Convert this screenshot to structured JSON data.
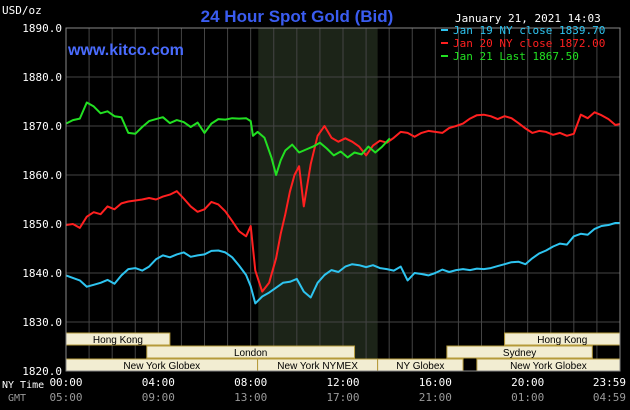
{
  "header": {
    "title": "24 Hour Spot Gold (Bid)",
    "unit": "USD/oz",
    "datetime": "January 21, 2021 14:03",
    "watermark": "www.kitco.com"
  },
  "colors": {
    "background": "#000000",
    "grid": "#444444",
    "axis_text": "#ffffff",
    "title": "#3a5cf0",
    "watermark": "#4a6cff",
    "band_fill": "#f2edd2",
    "band_text": "#000000",
    "band_border": "#b59a3a",
    "highlight": "#1c2418"
  },
  "chart_data": {
    "type": "line",
    "ylim": [
      1820,
      1890
    ],
    "yticks": [
      "1820.0",
      "1830.0",
      "1840.0",
      "1850.0",
      "1860.0",
      "1870.0",
      "1880.0",
      "1890.0"
    ],
    "ytick_values": [
      1820,
      1830,
      1840,
      1850,
      1860,
      1870,
      1880,
      1890
    ],
    "xlim": [
      0,
      24
    ],
    "xticks_ny": [
      "00:00",
      "04:00",
      "08:00",
      "12:00",
      "16:00",
      "20:00",
      "23:59"
    ],
    "xticks_gmt": [
      "05:00",
      "09:00",
      "13:00",
      "17:00",
      "21:00",
      "01:00",
      "04:59"
    ],
    "xtick_hours": [
      0,
      4,
      8,
      12,
      16,
      20,
      24
    ],
    "row_labels": [
      "NY Time",
      "GMT"
    ],
    "highlight_hours": [
      8.33,
      13.5
    ],
    "series": [
      {
        "name": "Jan 19 NY close 1839.70",
        "color": "#2ec4f0",
        "x": [
          0,
          0.3,
          0.6,
          0.9,
          1.2,
          1.5,
          1.8,
          2.1,
          2.4,
          2.7,
          3.0,
          3.3,
          3.6,
          3.9,
          4.2,
          4.5,
          4.8,
          5.1,
          5.4,
          5.7,
          6.0,
          6.3,
          6.6,
          6.9,
          7.2,
          7.5,
          7.8,
          8.0,
          8.2,
          8.5,
          8.8,
          9.1,
          9.4,
          9.7,
          10.0,
          10.3,
          10.6,
          10.9,
          11.2,
          11.5,
          11.8,
          12.1,
          12.4,
          12.7,
          13.0,
          13.3,
          13.6,
          13.9,
          14.2,
          14.5,
          14.8,
          15.1,
          15.4,
          15.7,
          16.0,
          16.3,
          16.6,
          16.9,
          17.2,
          17.5,
          17.8,
          18.1,
          18.4,
          18.7,
          19.0,
          19.3,
          19.6,
          19.9,
          20.2,
          20.5,
          20.8,
          21.1,
          21.4,
          21.7,
          22.0,
          22.3,
          22.6,
          22.9,
          23.2,
          23.5,
          23.8,
          24.0
        ],
        "values": [
          1839.5,
          1839.0,
          1838.5,
          1837.2,
          1837.6,
          1838.0,
          1838.6,
          1837.8,
          1839.5,
          1840.8,
          1841.0,
          1840.5,
          1841.3,
          1842.8,
          1843.6,
          1843.2,
          1843.8,
          1844.2,
          1843.3,
          1843.6,
          1843.8,
          1844.5,
          1844.6,
          1844.2,
          1843.2,
          1841.5,
          1839.6,
          1837.3,
          1833.8,
          1835.2,
          1836.0,
          1837.0,
          1838.0,
          1838.2,
          1838.8,
          1836.2,
          1835.0,
          1838.0,
          1839.6,
          1840.6,
          1840.2,
          1841.3,
          1841.8,
          1841.6,
          1841.2,
          1841.6,
          1841.0,
          1840.8,
          1840.5,
          1841.3,
          1838.5,
          1840.0,
          1839.8,
          1839.5,
          1840.0,
          1840.7,
          1840.2,
          1840.6,
          1840.8,
          1840.6,
          1840.9,
          1840.8,
          1841.0,
          1841.4,
          1841.8,
          1842.2,
          1842.3,
          1841.8,
          1843.0,
          1844.0,
          1844.6,
          1845.4,
          1846.0,
          1845.8,
          1847.5,
          1848.0,
          1847.8,
          1849.0,
          1849.6,
          1849.8,
          1850.2,
          1850.2
        ]
      },
      {
        "name": "Jan 20 NY close 1872.00",
        "color": "#ff2020",
        "x": [
          0,
          0.3,
          0.6,
          0.9,
          1.2,
          1.5,
          1.8,
          2.1,
          2.4,
          2.7,
          3.0,
          3.3,
          3.6,
          3.9,
          4.2,
          4.5,
          4.8,
          5.1,
          5.4,
          5.7,
          6.0,
          6.3,
          6.6,
          6.9,
          7.2,
          7.5,
          7.8,
          8.0,
          8.2,
          8.5,
          8.8,
          9.1,
          9.3,
          9.5,
          9.7,
          9.9,
          10.1,
          10.3,
          10.6,
          10.9,
          11.2,
          11.5,
          11.8,
          12.1,
          12.4,
          12.7,
          13.0,
          13.3,
          13.6,
          13.9,
          14.2,
          14.5,
          14.8,
          15.1,
          15.4,
          15.7,
          16.0,
          16.3,
          16.6,
          16.9,
          17.2,
          17.5,
          17.8,
          18.1,
          18.4,
          18.7,
          19.0,
          19.3,
          19.6,
          19.9,
          20.2,
          20.5,
          20.8,
          21.1,
          21.4,
          21.7,
          22.0,
          22.3,
          22.6,
          22.9,
          23.2,
          23.5,
          23.8,
          24.0
        ],
        "values": [
          1849.8,
          1850.0,
          1849.2,
          1851.5,
          1852.4,
          1852.0,
          1853.6,
          1853.0,
          1854.2,
          1854.6,
          1854.8,
          1855.0,
          1855.3,
          1855.0,
          1855.6,
          1856.0,
          1856.7,
          1855.2,
          1853.6,
          1852.5,
          1853.0,
          1854.5,
          1854.0,
          1852.6,
          1850.6,
          1848.5,
          1847.5,
          1849.6,
          1840.5,
          1836.2,
          1838.0,
          1843.0,
          1848.0,
          1852.0,
          1856.6,
          1860.0,
          1861.8,
          1853.6,
          1862.2,
          1868.0,
          1870.0,
          1867.6,
          1866.8,
          1867.5,
          1866.8,
          1865.8,
          1864.0,
          1866.0,
          1867.0,
          1866.6,
          1867.6,
          1868.8,
          1868.6,
          1867.8,
          1868.6,
          1869.0,
          1868.8,
          1868.6,
          1869.6,
          1870.0,
          1870.5,
          1871.5,
          1872.2,
          1872.3,
          1872.0,
          1871.4,
          1872.0,
          1871.6,
          1870.6,
          1869.5,
          1868.6,
          1869.0,
          1868.8,
          1868.2,
          1868.6,
          1868.0,
          1868.4,
          1872.3,
          1871.6,
          1872.8,
          1872.2,
          1871.4,
          1870.2,
          1870.4
        ]
      },
      {
        "name": "Jan 21 Last 1867.50",
        "color": "#22e022",
        "x": [
          0,
          0.3,
          0.6,
          0.9,
          1.2,
          1.5,
          1.8,
          2.1,
          2.4,
          2.7,
          3.0,
          3.3,
          3.6,
          3.9,
          4.2,
          4.5,
          4.8,
          5.1,
          5.4,
          5.7,
          6.0,
          6.3,
          6.6,
          6.9,
          7.2,
          7.5,
          7.8,
          8.0,
          8.1,
          8.3,
          8.6,
          8.9,
          9.1,
          9.3,
          9.5,
          9.8,
          10.1,
          10.4,
          10.7,
          11.0,
          11.3,
          11.6,
          11.9,
          12.2,
          12.5,
          12.8,
          13.1,
          13.4,
          13.7,
          14.03
        ],
        "values": [
          1870.5,
          1871.2,
          1871.5,
          1874.8,
          1874.0,
          1872.6,
          1873.0,
          1872.0,
          1871.8,
          1868.6,
          1868.4,
          1869.8,
          1871.0,
          1871.4,
          1871.8,
          1870.6,
          1871.2,
          1870.8,
          1869.8,
          1870.7,
          1868.6,
          1870.5,
          1871.4,
          1871.3,
          1871.6,
          1871.5,
          1871.6,
          1871.0,
          1868.0,
          1868.8,
          1867.6,
          1863.6,
          1860.0,
          1863.0,
          1865.0,
          1866.2,
          1864.6,
          1865.2,
          1865.8,
          1866.6,
          1865.4,
          1864.0,
          1864.8,
          1863.6,
          1864.6,
          1864.2,
          1865.8,
          1864.6,
          1865.8,
          1867.5
        ]
      }
    ]
  },
  "sessions": {
    "labels": [
      "Hong Kong",
      "London",
      "New York Globex",
      "New York NYMEX",
      "NY Globex",
      "Hong Kong",
      "Sydney",
      "New York Globex"
    ],
    "rows": [
      {
        "label": 0,
        "start": 0,
        "end": 4.5,
        "row": 0
      },
      {
        "label": 1,
        "start": 3.5,
        "end": 12.5,
        "row": 1
      },
      {
        "label": 2,
        "start": 0,
        "end": 8.3,
        "row": 2
      },
      {
        "label": 3,
        "start": 8.3,
        "end": 13.5,
        "row": 2
      },
      {
        "label": 4,
        "start": 13.5,
        "end": 17.2,
        "row": 2
      },
      {
        "label": 5,
        "start": 19.0,
        "end": 24.0,
        "row": 0
      },
      {
        "label": 6,
        "start": 16.5,
        "end": 22.8,
        "row": 1
      },
      {
        "label": 7,
        "start": 17.8,
        "end": 24.0,
        "row": 2
      }
    ]
  }
}
